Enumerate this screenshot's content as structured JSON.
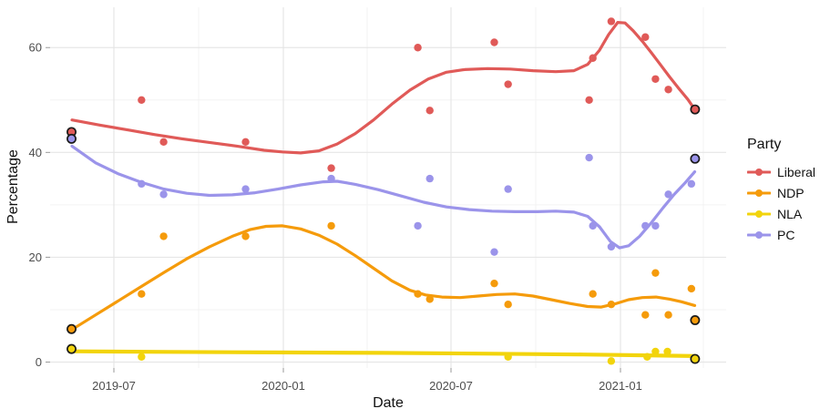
{
  "chart_data": {
    "type": "scatter",
    "smooth": true,
    "smoothing": "loess trend line per series",
    "title": "",
    "xlabel": "Date",
    "ylabel": "Percentage",
    "legend": {
      "title": "Party",
      "position": "right"
    },
    "x_axis": {
      "tick_labels": [
        "2019-07",
        "2020-01",
        "2020-07",
        "2021-01"
      ],
      "tick_dates": [
        "2019-07-01",
        "2020-01-01",
        "2020-07-01",
        "2021-01-01"
      ],
      "minor_dates": [
        "2019-10-01",
        "2020-04-01",
        "2020-10-01",
        "2021-04-01"
      ],
      "range_dates": [
        "2019-04-23",
        "2021-04-25"
      ]
    },
    "y_axis": {
      "tick_labels": [
        "0",
        "20",
        "40",
        "60"
      ],
      "ticks": [
        0,
        20,
        40,
        60
      ],
      "minor_ticks": [
        10,
        30,
        50
      ],
      "range": [
        -1.2,
        67.7
      ]
    },
    "grid": "major and minor, light gray on white",
    "note": "Points with black outline (result=true) are election results; others are polls. trend = loess curve sampled as [x_px, percent].",
    "series": [
      {
        "name": "Liberal",
        "color": "#E05A58",
        "points": [
          {
            "date": "2019-05-16",
            "value": 43.9,
            "result": true
          },
          {
            "date": "2019-07-31",
            "value": 50
          },
          {
            "date": "2019-08-24",
            "value": 42
          },
          {
            "date": "2019-11-21",
            "value": 42
          },
          {
            "date": "2020-02-22",
            "value": 37
          },
          {
            "date": "2020-05-26",
            "value": 60
          },
          {
            "date": "2020-06-08",
            "value": 48
          },
          {
            "date": "2020-08-17",
            "value": 61
          },
          {
            "date": "2020-09-01",
            "value": 53
          },
          {
            "date": "2020-11-28",
            "value": 50
          },
          {
            "date": "2020-12-02",
            "value": 58
          },
          {
            "date": "2020-12-22",
            "value": 65
          },
          {
            "date": "2021-01-28",
            "value": 62
          },
          {
            "date": "2021-02-08",
            "value": 54
          },
          {
            "date": "2021-02-22",
            "value": 52
          },
          {
            "date": "2021-03-23",
            "value": 48.2,
            "result": true
          }
        ],
        "trend": [
          [
            79,
            46.2
          ],
          [
            110,
            45.2
          ],
          [
            140,
            44.3
          ],
          [
            170,
            43.4
          ],
          [
            200,
            42.6
          ],
          [
            230,
            41.9
          ],
          [
            260,
            41.2
          ],
          [
            290,
            40.4
          ],
          [
            310,
            40.1
          ],
          [
            330,
            39.9
          ],
          [
            350,
            40.3
          ],
          [
            370,
            41.6
          ],
          [
            390,
            43.6
          ],
          [
            410,
            46.2
          ],
          [
            430,
            49.2
          ],
          [
            450,
            51.9
          ],
          [
            470,
            54.0
          ],
          [
            490,
            55.3
          ],
          [
            510,
            55.8
          ],
          [
            535,
            56.0
          ],
          [
            560,
            55.9
          ],
          [
            585,
            55.6
          ],
          [
            610,
            55.4
          ],
          [
            630,
            55.6
          ],
          [
            645,
            56.8
          ],
          [
            658,
            59.5
          ],
          [
            668,
            62.5
          ],
          [
            678,
            64.8
          ],
          [
            686,
            64.7
          ],
          [
            695,
            63.2
          ],
          [
            705,
            61.2
          ],
          [
            715,
            59.0
          ],
          [
            725,
            56.7
          ],
          [
            735,
            54.4
          ],
          [
            745,
            52.2
          ],
          [
            755,
            50.1
          ],
          [
            762.5,
            48.2
          ]
        ]
      },
      {
        "name": "NDP",
        "color": "#F59B0B",
        "points": [
          {
            "date": "2019-05-16",
            "value": 6.3,
            "result": true
          },
          {
            "date": "2019-07-31",
            "value": 13
          },
          {
            "date": "2019-08-24",
            "value": 24
          },
          {
            "date": "2019-11-21",
            "value": 24
          },
          {
            "date": "2020-02-22",
            "value": 26
          },
          {
            "date": "2020-05-26",
            "value": 13
          },
          {
            "date": "2020-06-08",
            "value": 12
          },
          {
            "date": "2020-08-17",
            "value": 15
          },
          {
            "date": "2020-09-01",
            "value": 11
          },
          {
            "date": "2020-12-02",
            "value": 13
          },
          {
            "date": "2020-12-22",
            "value": 11
          },
          {
            "date": "2021-01-28",
            "value": 9
          },
          {
            "date": "2021-02-08",
            "value": 17
          },
          {
            "date": "2021-02-22",
            "value": 9
          },
          {
            "date": "2021-03-19",
            "value": 14
          },
          {
            "date": "2021-03-23",
            "value": 8.0,
            "result": true
          }
        ],
        "trend": [
          [
            79,
            6.2
          ],
          [
            105,
            9.0
          ],
          [
            130,
            11.7
          ],
          [
            155,
            14.4
          ],
          [
            180,
            17.1
          ],
          [
            205,
            19.7
          ],
          [
            230,
            22.0
          ],
          [
            255,
            24.0
          ],
          [
            275,
            25.3
          ],
          [
            292,
            25.9
          ],
          [
            310,
            26.0
          ],
          [
            330,
            25.4
          ],
          [
            350,
            24.2
          ],
          [
            370,
            22.5
          ],
          [
            390,
            20.3
          ],
          [
            410,
            17.9
          ],
          [
            430,
            15.5
          ],
          [
            450,
            13.7
          ],
          [
            467,
            12.8
          ],
          [
            485,
            12.4
          ],
          [
            505,
            12.3
          ],
          [
            525,
            12.6
          ],
          [
            545,
            12.9
          ],
          [
            565,
            13.0
          ],
          [
            585,
            12.6
          ],
          [
            605,
            11.9
          ],
          [
            625,
            11.2
          ],
          [
            645,
            10.6
          ],
          [
            660,
            10.5
          ],
          [
            675,
            11.1
          ],
          [
            690,
            11.9
          ],
          [
            705,
            12.3
          ],
          [
            720,
            12.4
          ],
          [
            735,
            12.0
          ],
          [
            748,
            11.5
          ],
          [
            762.5,
            10.8
          ]
        ]
      },
      {
        "name": "NLA",
        "color": "#F2D40C",
        "points": [
          {
            "date": "2019-05-16",
            "value": 2.5,
            "result": true
          },
          {
            "date": "2019-07-31",
            "value": 1
          },
          {
            "date": "2020-09-01",
            "value": 1
          },
          {
            "date": "2020-12-22",
            "value": 0.2
          },
          {
            "date": "2021-01-30",
            "value": 1
          },
          {
            "date": "2021-02-08",
            "value": 2
          },
          {
            "date": "2021-02-21",
            "value": 2
          },
          {
            "date": "2021-03-23",
            "value": 0.6,
            "result": true
          }
        ],
        "trend": [
          [
            79,
            2.05
          ],
          [
            180,
            1.95
          ],
          [
            300,
            1.85
          ],
          [
            420,
            1.75
          ],
          [
            540,
            1.6
          ],
          [
            640,
            1.45
          ],
          [
            700,
            1.3
          ],
          [
            762.5,
            1.15
          ]
        ]
      },
      {
        "name": "PC",
        "color": "#9B94EA",
        "points": [
          {
            "date": "2019-05-16",
            "value": 42.6,
            "result": true
          },
          {
            "date": "2019-07-31",
            "value": 34
          },
          {
            "date": "2019-08-24",
            "value": 32
          },
          {
            "date": "2019-11-21",
            "value": 33
          },
          {
            "date": "2020-02-22",
            "value": 35
          },
          {
            "date": "2020-05-26",
            "value": 26
          },
          {
            "date": "2020-06-08",
            "value": 35
          },
          {
            "date": "2020-08-17",
            "value": 21
          },
          {
            "date": "2020-09-01",
            "value": 33
          },
          {
            "date": "2020-11-28",
            "value": 39
          },
          {
            "date": "2020-12-02",
            "value": 26
          },
          {
            "date": "2020-12-22",
            "value": 22
          },
          {
            "date": "2021-01-28",
            "value": 26
          },
          {
            "date": "2021-02-08",
            "value": 26
          },
          {
            "date": "2021-02-22",
            "value": 32
          },
          {
            "date": "2021-03-19",
            "value": 34
          },
          {
            "date": "2021-03-23",
            "value": 38.8,
            "result": true
          }
        ],
        "trend": [
          [
            79,
            41.2
          ],
          [
            105,
            38.0
          ],
          [
            130,
            35.9
          ],
          [
            155,
            34.3
          ],
          [
            180,
            33.0
          ],
          [
            205,
            32.2
          ],
          [
            230,
            31.8
          ],
          [
            255,
            31.9
          ],
          [
            280,
            32.3
          ],
          [
            305,
            33.0
          ],
          [
            330,
            33.8
          ],
          [
            355,
            34.4
          ],
          [
            370,
            34.5
          ],
          [
            390,
            33.9
          ],
          [
            415,
            32.9
          ],
          [
            440,
            31.7
          ],
          [
            465,
            30.5
          ],
          [
            490,
            29.6
          ],
          [
            515,
            29.1
          ],
          [
            540,
            28.8
          ],
          [
            565,
            28.7
          ],
          [
            590,
            28.7
          ],
          [
            610,
            28.8
          ],
          [
            630,
            28.6
          ],
          [
            645,
            27.8
          ],
          [
            658,
            25.8
          ],
          [
            670,
            23.0
          ],
          [
            680,
            21.8
          ],
          [
            690,
            22.2
          ],
          [
            702,
            24.0
          ],
          [
            715,
            26.6
          ],
          [
            728,
            29.5
          ],
          [
            740,
            32.0
          ],
          [
            752,
            34.2
          ],
          [
            762.5,
            36.3
          ]
        ]
      }
    ],
    "colors": {
      "grid_major": "#E6E6E6",
      "grid_minor": "#F3F3F3",
      "axis_text": "#4D4D4D",
      "tick_mark": "#9A9A9A",
      "result_outline": "#1A1A1A",
      "background": "#FFFFFF"
    }
  }
}
